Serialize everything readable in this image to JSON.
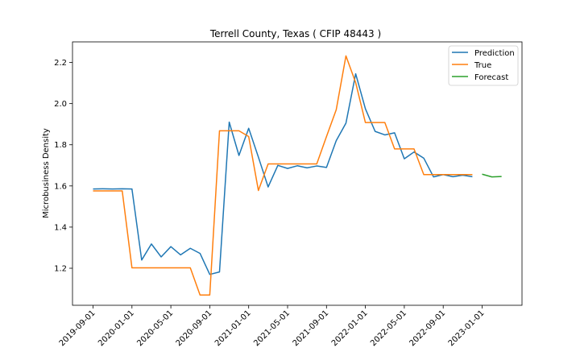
{
  "chart_data": {
    "type": "line",
    "title": "Terrell County, Texas ( CFIP 48443 )",
    "xlabel": "",
    "ylabel": "Microbusiness Density",
    "x_tick_labels": [
      "2019-09-01",
      "2020-01-01",
      "2020-05-01",
      "2020-09-01",
      "2021-01-01",
      "2021-05-01",
      "2021-09-01",
      "2022-01-01",
      "2022-05-01",
      "2022-09-01",
      "2023-01-01"
    ],
    "y_ticks": [
      1.2,
      1.4,
      1.6,
      1.8,
      2.0,
      2.2
    ],
    "y_tick_labels": [
      "1.2",
      "1.4",
      "1.6",
      "1.8",
      "2.0",
      "2.2"
    ],
    "ylim": [
      1.02,
      2.3
    ],
    "grid": false,
    "legend_position": "top-right",
    "series": [
      {
        "name": "Prediction",
        "color": "#1f77b4",
        "points": [
          [
            "2019-09-01",
            1.585
          ],
          [
            "2019-10-01",
            1.586
          ],
          [
            "2019-11-01",
            1.585
          ],
          [
            "2019-12-01",
            1.586
          ],
          [
            "2020-01-01",
            1.585
          ],
          [
            "2020-02-01",
            1.24
          ],
          [
            "2020-03-01",
            1.318
          ],
          [
            "2020-04-01",
            1.255
          ],
          [
            "2020-05-01",
            1.305
          ],
          [
            "2020-06-01",
            1.265
          ],
          [
            "2020-07-01",
            1.297
          ],
          [
            "2020-08-01",
            1.272
          ],
          [
            "2020-09-01",
            1.17
          ],
          [
            "2020-10-01",
            1.182
          ],
          [
            "2020-11-01",
            1.91
          ],
          [
            "2020-12-01",
            1.748
          ],
          [
            "2021-01-01",
            1.88
          ],
          [
            "2021-02-01",
            1.74
          ],
          [
            "2021-03-01",
            1.595
          ],
          [
            "2021-04-01",
            1.7
          ],
          [
            "2021-05-01",
            1.685
          ],
          [
            "2021-06-01",
            1.698
          ],
          [
            "2021-07-01",
            1.688
          ],
          [
            "2021-08-01",
            1.697
          ],
          [
            "2021-09-01",
            1.69
          ],
          [
            "2021-10-01",
            1.82
          ],
          [
            "2021-11-01",
            1.905
          ],
          [
            "2021-12-01",
            2.145
          ],
          [
            "2022-01-01",
            1.975
          ],
          [
            "2022-02-01",
            1.865
          ],
          [
            "2022-03-01",
            1.848
          ],
          [
            "2022-04-01",
            1.858
          ],
          [
            "2022-05-01",
            1.732
          ],
          [
            "2022-06-01",
            1.765
          ],
          [
            "2022-07-01",
            1.735
          ],
          [
            "2022-08-01",
            1.644
          ],
          [
            "2022-09-01",
            1.655
          ],
          [
            "2022-10-01",
            1.645
          ],
          [
            "2022-11-01",
            1.652
          ],
          [
            "2022-12-01",
            1.645
          ]
        ]
      },
      {
        "name": "True",
        "color": "#ff7f0e",
        "points": [
          [
            "2019-09-01",
            1.576
          ],
          [
            "2019-10-01",
            1.576
          ],
          [
            "2019-11-01",
            1.576
          ],
          [
            "2019-12-01",
            1.576
          ],
          [
            "2020-01-01",
            1.202
          ],
          [
            "2020-02-01",
            1.202
          ],
          [
            "2020-03-01",
            1.202
          ],
          [
            "2020-04-01",
            1.202
          ],
          [
            "2020-05-01",
            1.202
          ],
          [
            "2020-06-01",
            1.202
          ],
          [
            "2020-07-01",
            1.202
          ],
          [
            "2020-08-01",
            1.07
          ],
          [
            "2020-09-01",
            1.07
          ],
          [
            "2020-10-01",
            1.868
          ],
          [
            "2020-11-01",
            1.868
          ],
          [
            "2020-12-01",
            1.868
          ],
          [
            "2021-01-01",
            1.84
          ],
          [
            "2021-02-01",
            1.578
          ],
          [
            "2021-03-01",
            1.707
          ],
          [
            "2021-04-01",
            1.707
          ],
          [
            "2021-05-01",
            1.707
          ],
          [
            "2021-06-01",
            1.707
          ],
          [
            "2021-07-01",
            1.707
          ],
          [
            "2021-08-01",
            1.707
          ],
          [
            "2021-09-01",
            1.84
          ],
          [
            "2021-10-01",
            1.97
          ],
          [
            "2021-11-01",
            2.232
          ],
          [
            "2021-12-01",
            2.102
          ],
          [
            "2022-01-01",
            1.908
          ],
          [
            "2022-02-01",
            1.908
          ],
          [
            "2022-03-01",
            1.908
          ],
          [
            "2022-04-01",
            1.78
          ],
          [
            "2022-05-01",
            1.78
          ],
          [
            "2022-06-01",
            1.78
          ],
          [
            "2022-07-01",
            1.655
          ],
          [
            "2022-08-01",
            1.655
          ],
          [
            "2022-09-01",
            1.655
          ],
          [
            "2022-10-01",
            1.655
          ],
          [
            "2022-11-01",
            1.655
          ],
          [
            "2022-12-01",
            1.655
          ]
        ]
      },
      {
        "name": "Forecast",
        "color": "#2ca02c",
        "points": [
          [
            "2023-01-01",
            1.657
          ],
          [
            "2023-02-01",
            1.644
          ],
          [
            "2023-03-01",
            1.646
          ]
        ]
      }
    ]
  }
}
